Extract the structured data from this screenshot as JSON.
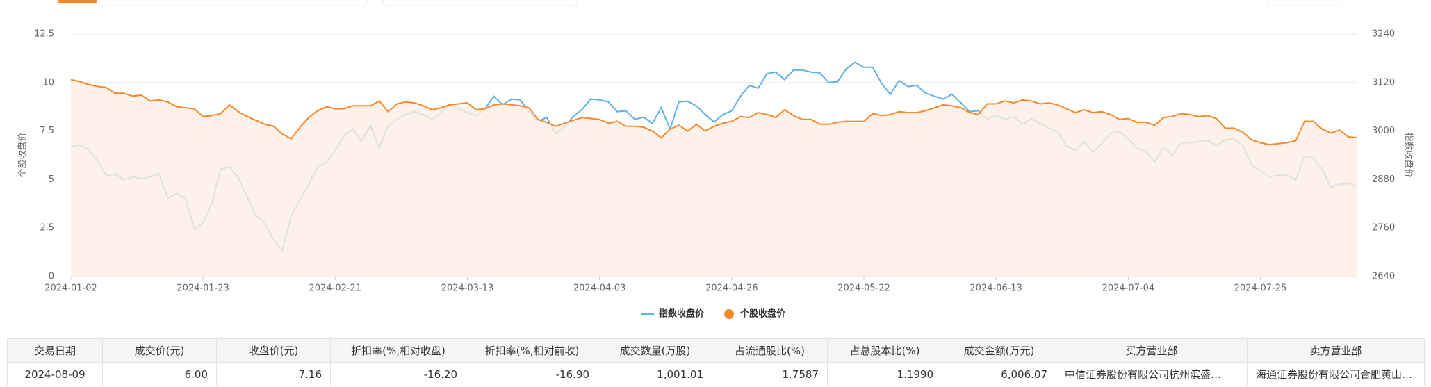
{
  "chart_data": {
    "type": "line",
    "y_label": "个股收盘价",
    "y2_label": "指数收盘价",
    "categories": [
      "2024-01-02",
      null,
      null,
      null,
      null,
      null,
      null,
      null,
      null,
      null,
      null,
      null,
      null,
      null,
      null,
      "2024-01-23",
      null,
      null,
      null,
      null,
      null,
      null,
      null,
      null,
      null,
      null,
      null,
      null,
      null,
      null,
      "2024-02-21",
      null,
      null,
      null,
      null,
      null,
      null,
      null,
      null,
      null,
      null,
      null,
      null,
      null,
      null,
      "2024-03-13",
      null,
      null,
      null,
      null,
      null,
      null,
      null,
      null,
      null,
      null,
      null,
      null,
      null,
      null,
      "2024-04-03",
      null,
      null,
      null,
      null,
      null,
      null,
      null,
      null,
      null,
      null,
      null,
      null,
      null,
      null,
      "2024-04-26",
      null,
      null,
      null,
      null,
      null,
      null,
      null,
      null,
      null,
      null,
      null,
      null,
      null,
      null,
      "2024-05-22",
      null,
      null,
      null,
      null,
      null,
      null,
      null,
      null,
      null,
      null,
      null,
      null,
      null,
      null,
      "2024-06-13",
      null,
      null,
      null,
      null,
      null,
      null,
      null,
      null,
      null,
      null,
      null,
      null,
      null,
      null,
      "2024-07-04",
      null,
      null,
      null,
      null,
      null,
      null,
      null,
      null,
      null,
      null,
      null,
      null,
      null,
      null,
      "2024-07-25",
      null,
      null,
      null,
      null,
      null,
      null,
      null,
      null,
      null,
      null,
      null
    ],
    "series": [
      {
        "name": "指数收盘价",
        "color": "#5fb0e6",
        "axis": "y2",
        "values": [
          2962,
          2966,
          2954,
          2928,
          2890,
          2894,
          2880,
          2887,
          2882,
          2887,
          2894,
          2834,
          2846,
          2834,
          2758,
          2772,
          2820,
          2906,
          2911,
          2885,
          2837,
          2791,
          2772,
          2731,
          2705,
          2789,
          2830,
          2868,
          2911,
          2923,
          2952,
          2988,
          3005,
          2976,
          3014,
          2957,
          3014,
          3029,
          3041,
          3048,
          3041,
          3029,
          3046,
          3067,
          3055,
          3046,
          3038,
          3055,
          3086,
          3065,
          3079,
          3077,
          3048,
          3024,
          3034,
          2993,
          3010,
          3036,
          3053,
          3079,
          3077,
          3072,
          3048,
          3050,
          3029,
          3034,
          3019,
          3058,
          3005,
          3072,
          3074,
          3062,
          3041,
          3022,
          3041,
          3050,
          3086,
          3113,
          3106,
          3142,
          3146,
          3127,
          3151,
          3151,
          3146,
          3144,
          3120,
          3122,
          3154,
          3170,
          3158,
          3158,
          3118,
          3091,
          3125,
          3110,
          3113,
          3094,
          3086,
          3079,
          3091,
          3070,
          3048,
          3050,
          3029,
          3038,
          3029,
          3036,
          3017,
          3031,
          3019,
          3007,
          2998,
          2964,
          2952,
          2974,
          2947,
          2969,
          2995,
          2998,
          2981,
          2957,
          2950,
          2923,
          2959,
          2940,
          2971,
          2971,
          2974,
          2976,
          2964,
          2978,
          2981,
          2964,
          2916,
          2902,
          2887,
          2890,
          2892,
          2878,
          2938,
          2933,
          2906,
          2861,
          2868,
          2870,
          2863
        ]
      },
      {
        "name": "个股收盘价",
        "color": "#f5892a",
        "fill": "#fdeee3",
        "values": [
          10.15,
          10.05,
          9.9,
          9.8,
          9.75,
          9.45,
          9.45,
          9.3,
          9.35,
          9.05,
          9.1,
          9.0,
          8.75,
          8.7,
          8.65,
          8.25,
          8.3,
          8.4,
          8.85,
          8.5,
          8.25,
          8.05,
          7.85,
          7.75,
          7.35,
          7.1,
          7.7,
          8.2,
          8.55,
          8.75,
          8.65,
          8.65,
          8.8,
          8.8,
          8.8,
          9.05,
          8.5,
          8.9,
          9.0,
          8.95,
          8.8,
          8.6,
          8.7,
          8.85,
          8.9,
          8.95,
          8.6,
          8.65,
          8.85,
          8.9,
          8.85,
          8.8,
          8.7,
          8.1,
          7.95,
          7.75,
          7.9,
          8.05,
          8.2,
          8.15,
          8.1,
          7.9,
          8.0,
          7.75,
          7.75,
          7.7,
          7.5,
          7.15,
          7.6,
          7.8,
          7.5,
          7.85,
          7.5,
          7.75,
          7.9,
          8.0,
          8.25,
          8.2,
          8.45,
          8.35,
          8.2,
          8.6,
          8.3,
          8.1,
          8.1,
          7.85,
          7.85,
          7.95,
          8.0,
          8.0,
          8.0,
          8.4,
          8.3,
          8.35,
          8.5,
          8.45,
          8.45,
          8.55,
          8.7,
          8.85,
          8.8,
          8.7,
          8.45,
          8.35,
          8.9,
          8.9,
          9.05,
          8.95,
          9.1,
          9.05,
          8.9,
          8.95,
          8.85,
          8.65,
          8.45,
          8.6,
          8.45,
          8.5,
          8.35,
          8.1,
          8.15,
          7.95,
          7.95,
          7.8,
          8.2,
          8.25,
          8.4,
          8.35,
          8.25,
          8.3,
          8.15,
          7.65,
          7.65,
          7.45,
          7.05,
          6.9,
          6.8,
          6.85,
          6.9,
          7.0,
          8.0,
          8.0,
          7.6,
          7.4,
          7.55,
          7.2,
          7.16
        ]
      }
    ],
    "ylim": [
      0,
      12.5
    ],
    "yticks": [
      0,
      2.5,
      5,
      7.5,
      10,
      12.5
    ],
    "y2lim": [
      2640,
      3240
    ],
    "y2ticks": [
      2640,
      2760,
      2880,
      3000,
      3120,
      3240
    ],
    "grid": true
  },
  "table": {
    "header": [
      "交易日期",
      "成交价(元)",
      "收盘价(元)",
      "折扣率(%,相对收盘)",
      "折扣率(%,相对前收)",
      "成交数量(万股)",
      "占流通股比(%)",
      "占总股本比(%)",
      "成交金额(万元)",
      "买方营业部",
      "卖方营业部"
    ],
    "rows": [
      [
        "2024-08-09",
        "6.00",
        "7.16",
        "-16.20",
        "-16.90",
        "1,001.01",
        "1.7587",
        "1.1990",
        "6,006.07",
        "中信证券股份有限公司杭州滨盛…",
        "海通证券股份有限公司合肥黄山…"
      ]
    ]
  }
}
